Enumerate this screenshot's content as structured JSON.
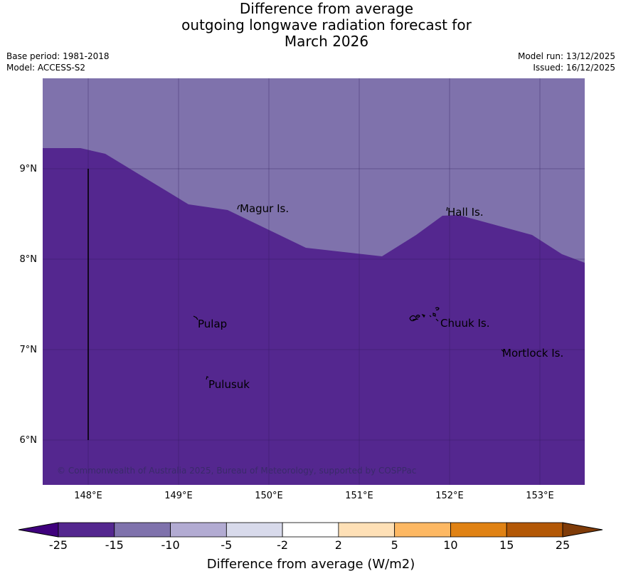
{
  "title": {
    "line1": "Difference from average",
    "line2": "outgoing longwave radiation forecast for",
    "line3": "March 2026"
  },
  "meta": {
    "base_period": "Base period: 1981-2018",
    "model": "Model: ACCESS-S2",
    "model_run": "Model run: 13/12/2025",
    "issued": "Issued: 16/12/2025"
  },
  "map": {
    "lat_labels": [
      "9°N",
      "8°N",
      "7°N",
      "6°N"
    ],
    "lon_labels": [
      "148°E",
      "149°E",
      "150°E",
      "151°E",
      "152°E",
      "153°E"
    ],
    "places": [
      "Magur Is.",
      "Hall Is.",
      "Pulap",
      "Chuuk Is.",
      "Mortlock Is.",
      "Pulusuk"
    ],
    "copyright": "© Commonwealth of Australia 2025, Bureau of Meteorology, supported by COSPPac",
    "colors": {
      "strong_negative": "#54278f",
      "moderate_negative": "#7f72ac"
    }
  },
  "legend": {
    "tick_labels": [
      "-25",
      "-15",
      "-10",
      "-5",
      "-2",
      "2",
      "5",
      "10",
      "15",
      "25"
    ],
    "colors": [
      "#3f007d",
      "#54278f",
      "#7f72ac",
      "#b2abd2",
      "#d8daeb",
      "#ffffff",
      "#fee0b6",
      "#fdb863",
      "#e08214",
      "#b35806",
      "#7f3b08"
    ],
    "label": "Difference from average (W/m2)"
  }
}
